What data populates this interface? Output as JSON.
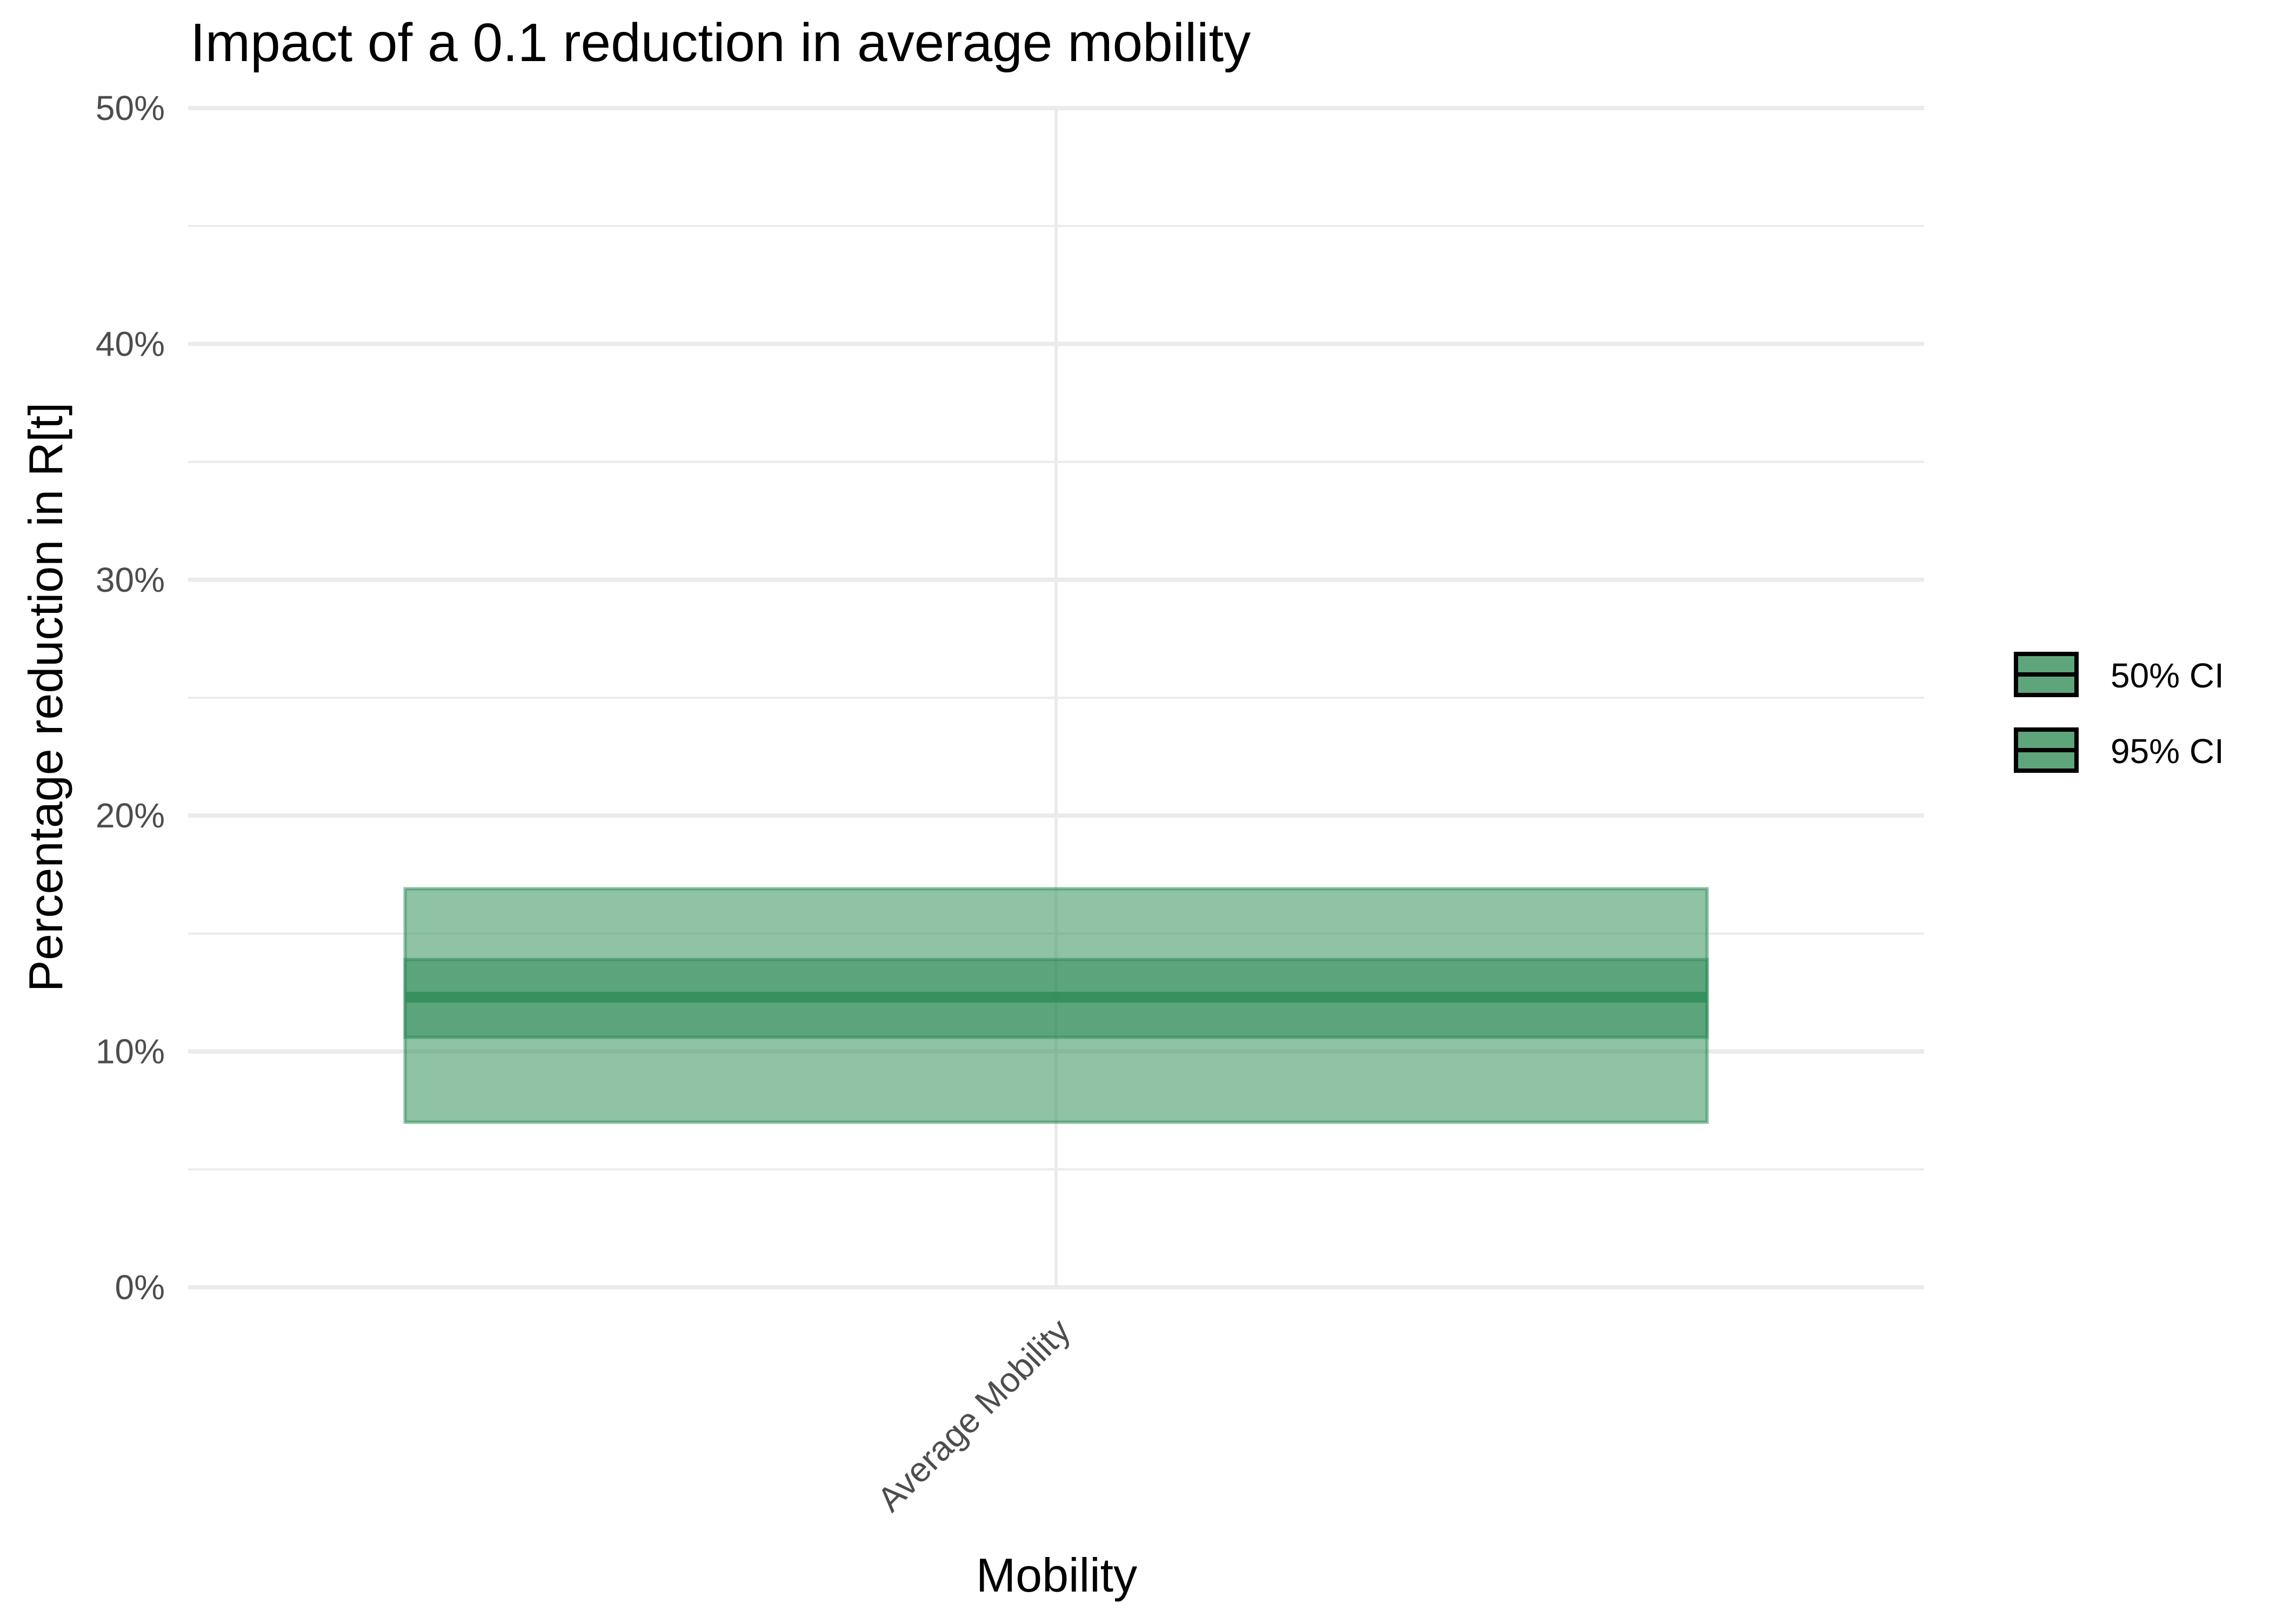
{
  "chart_data": {
    "type": "crossbar",
    "title": "Impact of a 0.1 reduction in average mobility",
    "xlabel": "Mobility",
    "ylabel": "Percentage reduction in R[t]",
    "categories": [
      "Average Mobility"
    ],
    "ylim": [
      0,
      50
    ],
    "y_ticks": [
      "0%",
      "10%",
      "20%",
      "30%",
      "40%",
      "50%"
    ],
    "grid": true,
    "legend_position": "right",
    "series": [
      {
        "name": "50% CI",
        "values": [
          {
            "low": 10.6,
            "median": 12.3,
            "high": 13.9
          }
        ]
      },
      {
        "name": "95% CI",
        "values": [
          {
            "low": 7.0,
            "median": 12.3,
            "high": 16.9
          }
        ]
      }
    ],
    "colors": {
      "fill": "#2e8b57",
      "legend_fill": "#5fa57c",
      "grid": "#ebebeb",
      "tick_text": "#4d4d4d",
      "text": "#000000"
    }
  }
}
